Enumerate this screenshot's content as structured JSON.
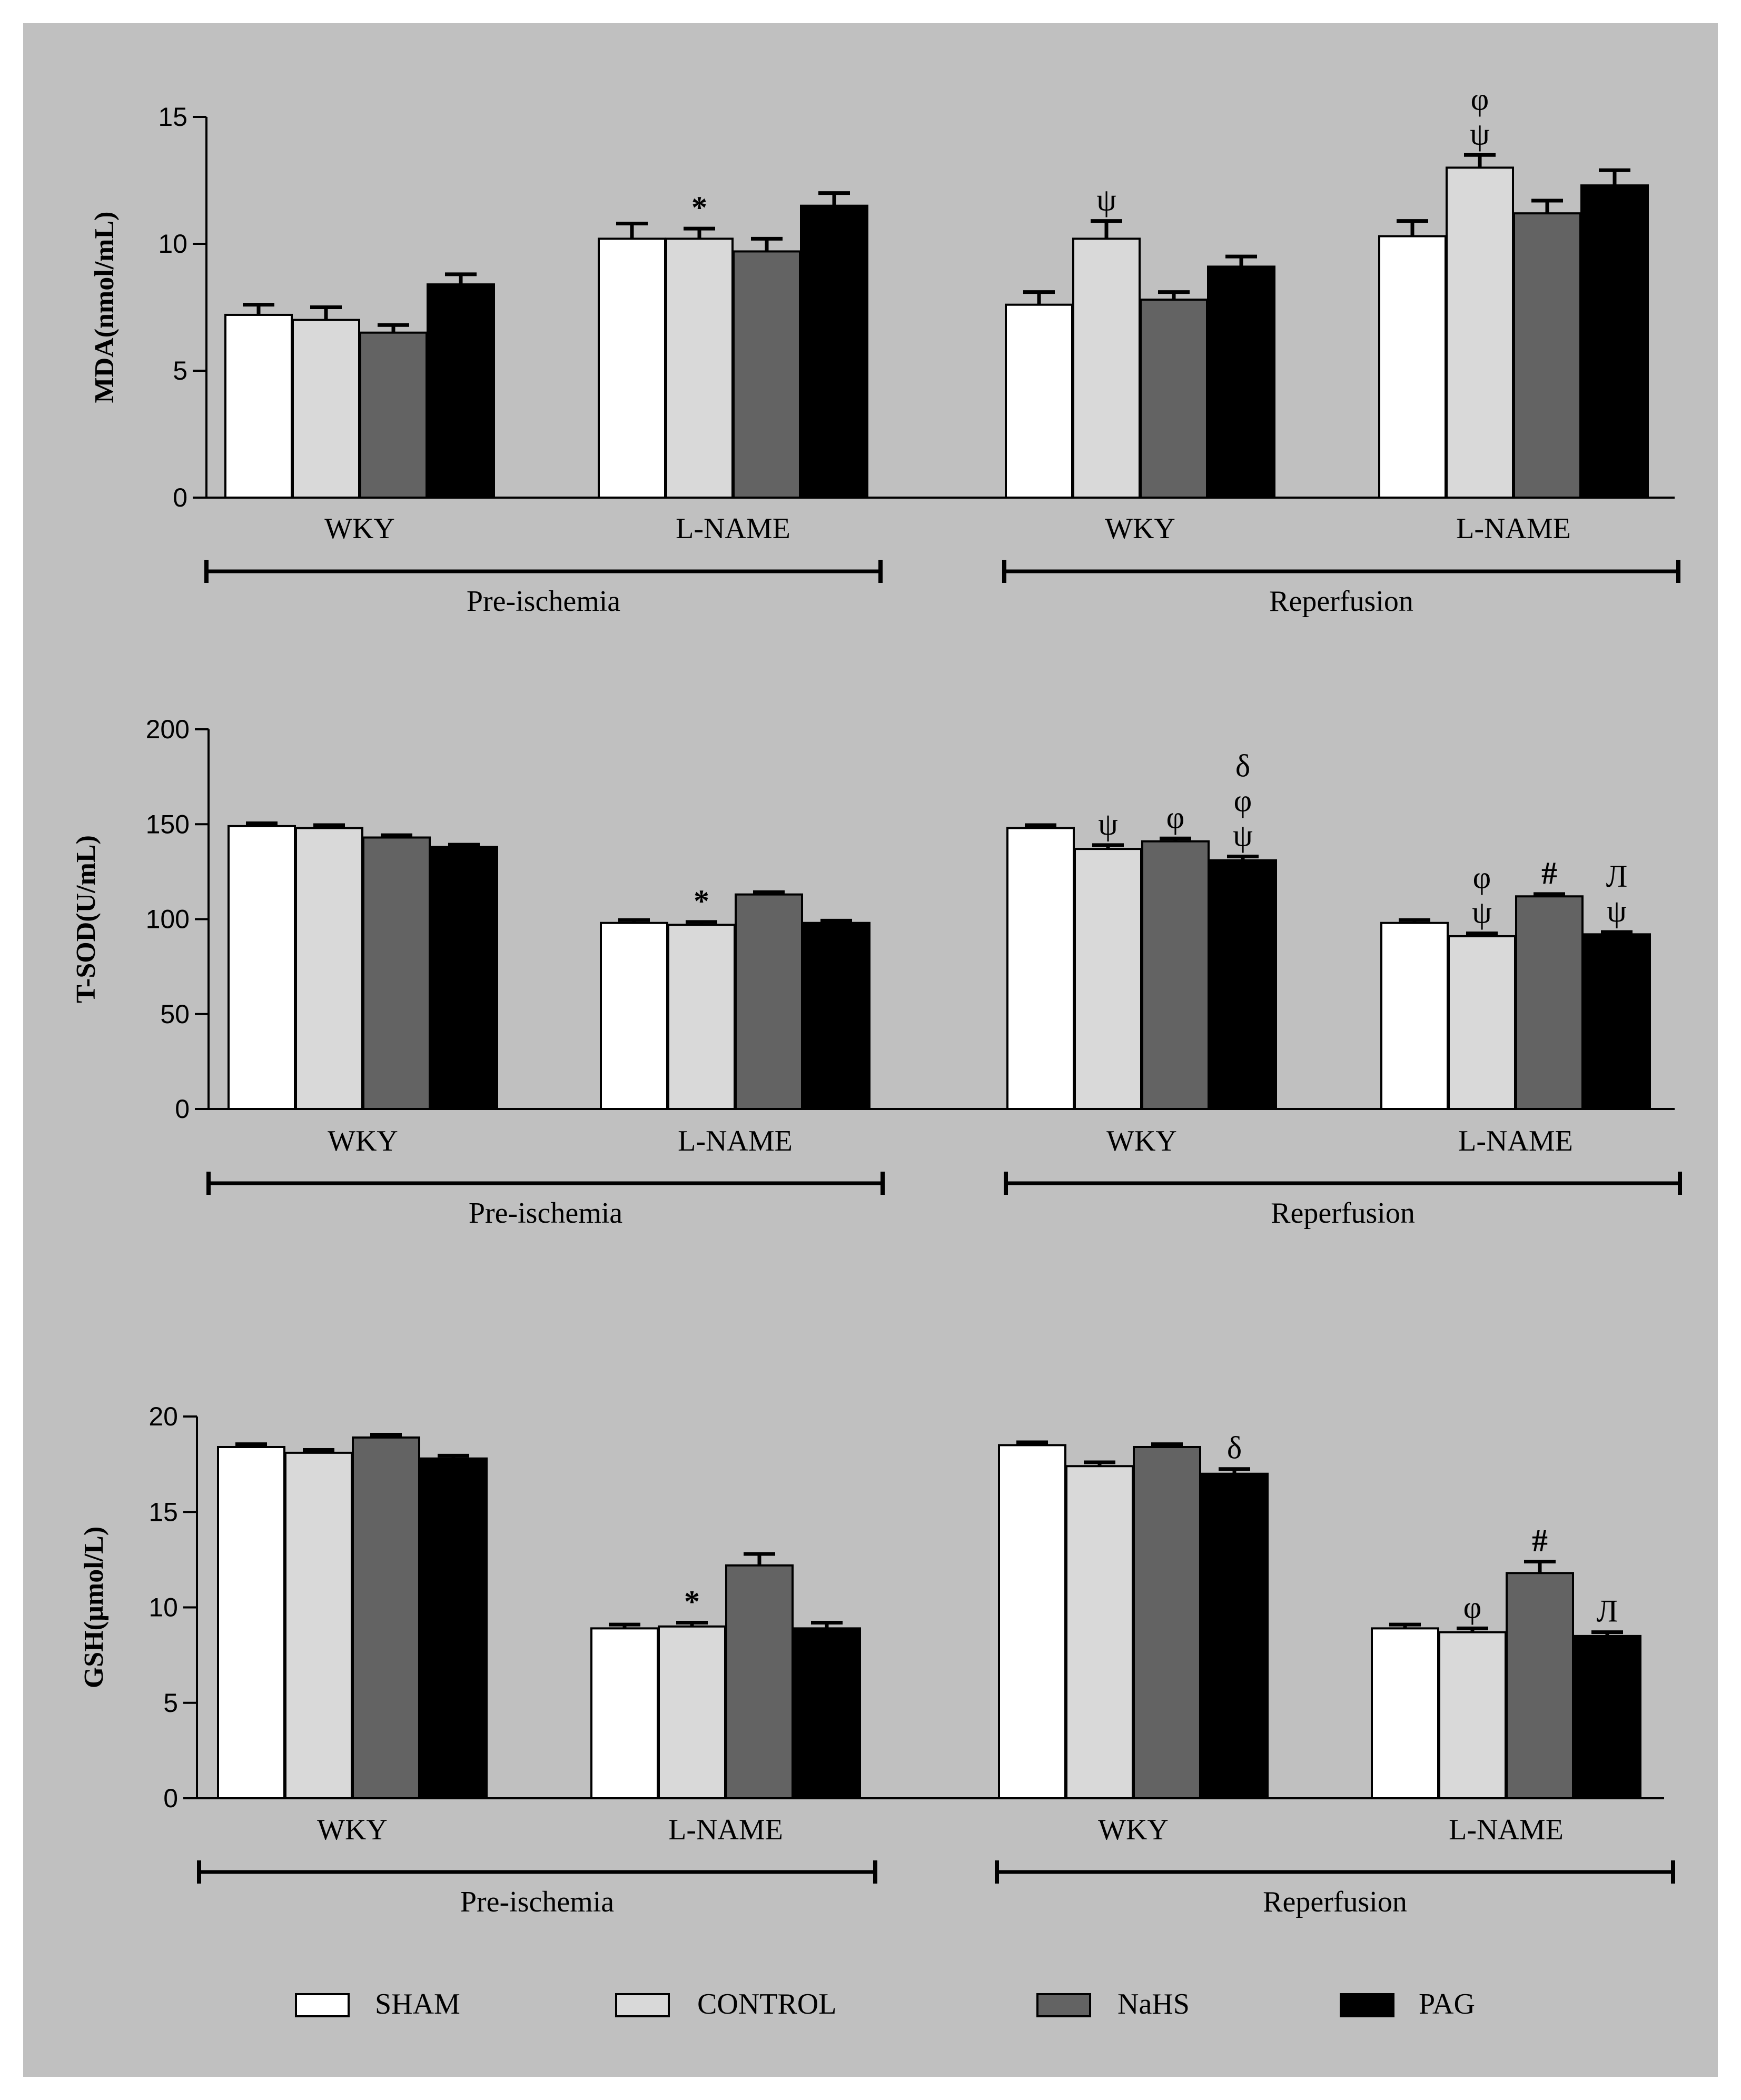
{
  "legend": {
    "items": [
      {
        "label": "SHAM",
        "color": "#ffffff"
      },
      {
        "label": "CONTROL",
        "color": "#d9d9d9"
      },
      {
        "label": "NaHS",
        "color": "#636363"
      },
      {
        "label": "PAG",
        "color": "#000000"
      }
    ]
  },
  "colors": {
    "panel_bg": "#c0c0c0",
    "outer_bg": "#ffffff"
  },
  "chart_data": [
    {
      "type": "bar",
      "ylabel": "MDA(nmol/mL)",
      "ylim": [
        0,
        15
      ],
      "yticks": [
        0,
        5,
        10,
        15
      ],
      "series_names": [
        "SHAM",
        "CONTROL",
        "NaHS",
        "PAG"
      ],
      "phases": [
        "Pre-ischemia",
        "Reperfusion"
      ],
      "groups": [
        {
          "label": "WKY",
          "phase": "Pre-ischemia",
          "values": [
            7.2,
            7.0,
            6.5,
            8.4
          ],
          "errors": [
            0.4,
            0.5,
            0.3,
            0.4
          ],
          "annotations": [
            "",
            "",
            "",
            ""
          ]
        },
        {
          "label": "L-NAME",
          "phase": "Pre-ischemia",
          "values": [
            10.2,
            10.2,
            9.7,
            11.5
          ],
          "errors": [
            0.6,
            0.4,
            0.5,
            0.5
          ],
          "annotations": [
            "",
            "*",
            "",
            ""
          ]
        },
        {
          "label": "WKY",
          "phase": "Reperfusion",
          "values": [
            7.6,
            10.2,
            7.8,
            9.1
          ],
          "errors": [
            0.5,
            0.7,
            0.3,
            0.4
          ],
          "annotations": [
            "",
            "ψ",
            "",
            ""
          ]
        },
        {
          "label": "L-NAME",
          "phase": "Reperfusion",
          "values": [
            10.3,
            13.0,
            11.2,
            12.3
          ],
          "errors": [
            0.6,
            0.5,
            0.5,
            0.6
          ],
          "annotations": [
            "",
            "φ\nψ",
            "",
            ""
          ]
        }
      ]
    },
    {
      "type": "bar",
      "ylabel": "T-SOD(U/mL)",
      "ylim": [
        0,
        200
      ],
      "yticks": [
        0,
        50,
        100,
        150,
        200
      ],
      "series_names": [
        "SHAM",
        "CONTROL",
        "NaHS",
        "PAG"
      ],
      "phases": [
        "Pre-ischemia",
        "Reperfusion"
      ],
      "groups": [
        {
          "label": "WKY",
          "phase": "Pre-ischemia",
          "values": [
            149,
            148,
            143,
            138
          ],
          "errors": [
            1.5,
            1.5,
            1.2,
            1.2
          ],
          "annotations": [
            "",
            "",
            "",
            ""
          ]
        },
        {
          "label": "L-NAME",
          "phase": "Pre-ischemia",
          "values": [
            98,
            97,
            113,
            98
          ],
          "errors": [
            1.5,
            1.5,
            1.2,
            1.2
          ],
          "annotations": [
            "",
            "*",
            "",
            ""
          ]
        },
        {
          "label": "WKY",
          "phase": "Reperfusion",
          "values": [
            148,
            137,
            141,
            131
          ],
          "errors": [
            1.5,
            2,
            1.5,
            2
          ],
          "annotations": [
            "",
            "ψ",
            "φ",
            "δ\nφ\nψ"
          ]
        },
        {
          "label": "L-NAME",
          "phase": "Reperfusion",
          "values": [
            98,
            91,
            112,
            92
          ],
          "errors": [
            1.5,
            1.5,
            1.2,
            1.2
          ],
          "annotations": [
            "",
            "φ\nψ",
            "#",
            "Л\nψ"
          ]
        }
      ]
    },
    {
      "type": "bar",
      "ylabel": "GSH(µmol/L)",
      "ylim": [
        0,
        20
      ],
      "yticks": [
        0,
        5,
        10,
        15,
        20
      ],
      "series_names": [
        "SHAM",
        "CONTROL",
        "NaHS",
        "PAG"
      ],
      "phases": [
        "Pre-ischemia",
        "Reperfusion"
      ],
      "groups": [
        {
          "label": "WKY",
          "phase": "Pre-ischemia",
          "values": [
            18.4,
            18.1,
            18.9,
            17.8
          ],
          "errors": [
            0.15,
            0.15,
            0.15,
            0.15
          ],
          "annotations": [
            "",
            "",
            "",
            ""
          ]
        },
        {
          "label": "L-NAME",
          "phase": "Pre-ischemia",
          "values": [
            8.9,
            9.0,
            12.2,
            8.9
          ],
          "errors": [
            0.2,
            0.2,
            0.6,
            0.3
          ],
          "annotations": [
            "",
            "*",
            "",
            ""
          ]
        },
        {
          "label": "WKY",
          "phase": "Reperfusion",
          "values": [
            18.5,
            17.4,
            18.4,
            17.0
          ],
          "errors": [
            0.15,
            0.2,
            0.15,
            0.25
          ],
          "annotations": [
            "",
            "",
            "",
            "δ"
          ]
        },
        {
          "label": "L-NAME",
          "phase": "Reperfusion",
          "values": [
            8.9,
            8.7,
            11.8,
            8.5
          ],
          "errors": [
            0.2,
            0.2,
            0.6,
            0.2
          ],
          "annotations": [
            "",
            "φ",
            "#",
            "Л"
          ]
        }
      ]
    }
  ]
}
